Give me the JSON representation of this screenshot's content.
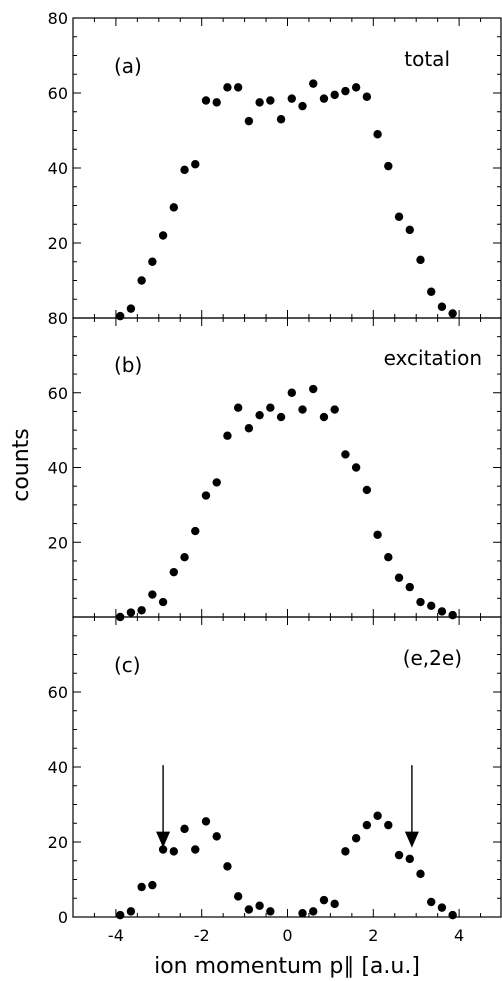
{
  "chart_data": [
    {
      "type": "scatter",
      "panel_label": "(a)",
      "annotation": "total",
      "y_tick_labels": [
        "80",
        "60",
        "40",
        "20"
      ],
      "ylim": [
        0,
        80
      ],
      "xlim": [
        -5,
        5
      ],
      "x": [
        -3.9,
        -3.65,
        -3.4,
        -3.15,
        -2.9,
        -2.65,
        -2.4,
        -2.15,
        -1.9,
        -1.65,
        -1.4,
        -1.15,
        -0.9,
        -0.65,
        -0.4,
        -0.15,
        0.1,
        0.35,
        0.6,
        0.85,
        1.1,
        1.35,
        1.6,
        1.85,
        2.1,
        2.35,
        2.6,
        2.85,
        3.1,
        3.35,
        3.6,
        3.85
      ],
      "y": [
        0.5,
        2.5,
        10,
        15,
        22,
        29.5,
        39.5,
        41,
        58,
        57.5,
        61.5,
        61.5,
        52.5,
        57.5,
        58,
        53,
        58.5,
        56.5,
        62.5,
        58.5,
        59.5,
        60.5,
        61.5,
        59,
        49,
        40.5,
        27,
        23.5,
        15.5,
        7,
        3,
        1.2
      ]
    },
    {
      "type": "scatter",
      "panel_label": "(b)",
      "annotation": "excitation",
      "y_tick_labels": [
        "80",
        "60",
        "40",
        "20"
      ],
      "ylim": [
        0,
        80
      ],
      "xlim": [
        -5,
        5
      ],
      "x": [
        -3.9,
        -3.65,
        -3.4,
        -3.15,
        -2.9,
        -2.65,
        -2.4,
        -2.15,
        -1.9,
        -1.65,
        -1.4,
        -1.15,
        -0.9,
        -0.65,
        -0.4,
        -0.15,
        0.1,
        0.35,
        0.6,
        0.85,
        1.1,
        1.35,
        1.6,
        1.85,
        2.1,
        2.35,
        2.6,
        2.85,
        3.1,
        3.35,
        3.6,
        3.85
      ],
      "y": [
        0,
        1.2,
        1.8,
        6,
        4,
        12,
        16,
        23,
        32.5,
        36,
        48.5,
        56,
        50.5,
        54,
        56,
        53.5,
        60,
        55.5,
        61,
        53.5,
        55.5,
        43.5,
        40,
        34,
        22,
        16,
        10.5,
        8,
        4,
        3,
        1.5,
        0.5
      ]
    },
    {
      "type": "scatter",
      "panel_label": "(c)",
      "annotation": "(e,2e)",
      "y_tick_labels": [
        "60",
        "40",
        "20",
        "0"
      ],
      "x_tick_labels": [
        "-4",
        "-2",
        "0",
        "2",
        "4"
      ],
      "xlabel": "ion momentum p∥ [a.u.]",
      "ylim": [
        0,
        80
      ],
      "xlim": [
        -5,
        5
      ],
      "x": [
        -3.9,
        -3.65,
        -3.4,
        -3.15,
        -2.9,
        -2.65,
        -2.4,
        -2.15,
        -1.9,
        -1.65,
        -1.4,
        -1.15,
        -0.9,
        -0.65,
        -0.4,
        0.35,
        0.6,
        0.85,
        1.1,
        1.35,
        1.6,
        1.85,
        2.1,
        2.35,
        2.6,
        2.85,
        3.1,
        3.35,
        3.6,
        3.85
      ],
      "y": [
        0.5,
        1.5,
        8,
        8.5,
        18,
        17.5,
        23.5,
        18,
        25.5,
        21.5,
        13.5,
        5.5,
        2,
        3,
        1.5,
        1,
        1.5,
        4.5,
        3.5,
        17.5,
        21,
        24.5,
        27,
        24.5,
        16.5,
        15.5,
        11.5,
        4,
        2.5,
        0.5
      ],
      "arrows_x": [
        -2.9,
        2.9
      ]
    }
  ],
  "ylabel": "counts"
}
